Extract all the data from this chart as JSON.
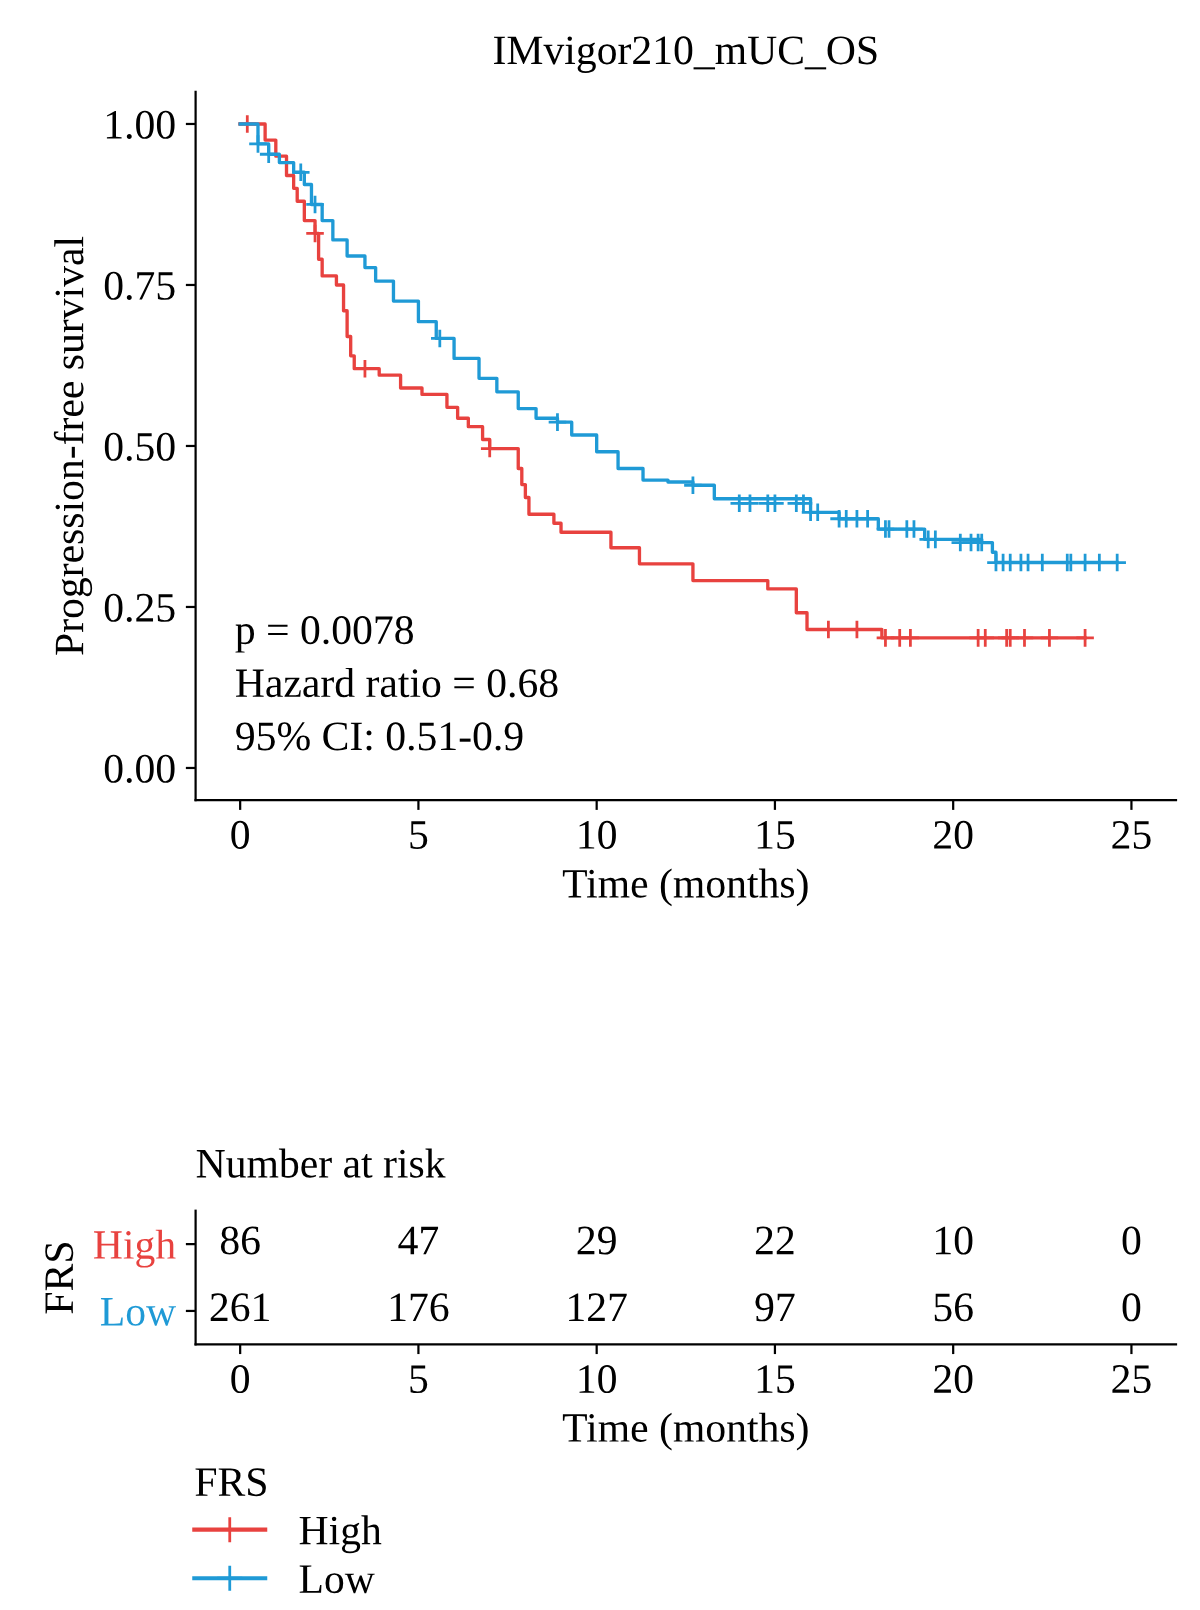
{
  "chart_data": [
    {
      "type": "step",
      "title": "IMvigor210_mUC_OS",
      "xlabel": "Time (months)",
      "ylabel": "Progression-free survival",
      "legend_title": "FRS",
      "legend": "bottom",
      "grid": false,
      "line_style": "solid",
      "xlim": [
        -1.25,
        26.25
      ],
      "xticks": [
        0,
        5,
        10,
        15,
        20,
        25
      ],
      "ylim": [
        -0.05,
        1.05
      ],
      "yticks": [
        {
          "value": 0,
          "label": "0.00"
        },
        {
          "value": 0.25,
          "label": "0.25"
        },
        {
          "value": 0.5,
          "label": "0.50"
        },
        {
          "value": 0.75,
          "label": "0.75"
        },
        {
          "value": 1,
          "label": "1.00"
        }
      ],
      "annotations": [
        "p = 0.0078",
        "Hazard ratio = 0.68",
        "95% CI: 0.51-0.9"
      ],
      "series": [
        {
          "name": "High",
          "color": "#e8423f",
          "x": [
            0,
            0.7,
            1.0,
            1.3,
            1.5,
            1.6,
            1.8,
            2.1,
            2.2,
            2.3,
            2.7,
            2.9,
            3.0,
            3.1,
            3.2,
            3.9,
            4.5,
            5.1,
            5.8,
            6.1,
            6.4,
            6.8,
            7.0,
            7.8,
            7.9,
            8.0,
            8.1,
            8.8,
            9.0,
            10.4,
            11.2,
            12.7,
            14.8,
            15.6,
            15.9,
            18.0,
            23.7
          ],
          "values": [
            1.0,
            0.975,
            0.95,
            0.92,
            0.9,
            0.88,
            0.85,
            0.83,
            0.79,
            0.764,
            0.75,
            0.71,
            0.67,
            0.64,
            0.62,
            0.61,
            0.59,
            0.58,
            0.56,
            0.543,
            0.53,
            0.51,
            0.496,
            0.465,
            0.44,
            0.42,
            0.394,
            0.38,
            0.366,
            0.342,
            0.317,
            0.291,
            0.278,
            0.241,
            0.215,
            0.202,
            0.202
          ]
        },
        {
          "name": "Low",
          "color": "#1f9ad6",
          "x": [
            0,
            0.5,
            0.8,
            1.1,
            1.5,
            1.8,
            2.0,
            2.3,
            2.6,
            3.0,
            3.5,
            3.8,
            4.3,
            5.0,
            5.5,
            6.0,
            6.7,
            7.2,
            7.8,
            8.3,
            8.9,
            9.3,
            10.0,
            10.6,
            11.3,
            12.0,
            12.7,
            13.3,
            16.0,
            16.8,
            17.9,
            19.2,
            20.8,
            21.1,
            21.2,
            24.6
          ],
          "values": [
            1.0,
            0.969,
            0.953,
            0.94,
            0.925,
            0.906,
            0.875,
            0.85,
            0.82,
            0.795,
            0.777,
            0.756,
            0.725,
            0.693,
            0.667,
            0.636,
            0.605,
            0.584,
            0.558,
            0.543,
            0.537,
            0.517,
            0.491,
            0.465,
            0.447,
            0.444,
            0.439,
            0.418,
            0.397,
            0.387,
            0.371,
            0.355,
            0.35,
            0.335,
            0.319,
            0.319
          ]
        },
        {
          "type": "scatter",
          "color": "#e8423f",
          "marker": "cross",
          "x": [
            0.2,
            2.1,
            3.5,
            7.0,
            16.5,
            17.3,
            18.1,
            18.5,
            18.8,
            20.7,
            20.9,
            21.5,
            21.6,
            22.0,
            22.7,
            23.7
          ],
          "values": [
            1.0,
            0.83,
            0.62,
            0.496,
            0.215,
            0.215,
            0.202,
            0.202,
            0.202,
            0.202,
            0.202,
            0.202,
            0.202,
            0.202,
            0.202,
            0.202
          ]
        },
        {
          "type": "scatter",
          "color": "#1f9ad6",
          "marker": "cross",
          "x": [
            0.5,
            0.8,
            1.7,
            2.1,
            5.6,
            8.9,
            12.7,
            14.0,
            14.3,
            14.8,
            15.0,
            15.6,
            15.8,
            16.0,
            16.2,
            16.8,
            17.0,
            17.3,
            17.6,
            18.1,
            18.2,
            18.7,
            18.9,
            19.3,
            19.5,
            20.2,
            20.5,
            20.7,
            20.8,
            21.2,
            21.4,
            21.6,
            21.9,
            22.1,
            22.5,
            23.2,
            23.3,
            23.7,
            24.1,
            24.6
          ],
          "values": [
            0.969,
            0.953,
            0.925,
            0.875,
            0.667,
            0.537,
            0.439,
            0.411,
            0.411,
            0.411,
            0.411,
            0.411,
            0.411,
            0.397,
            0.397,
            0.387,
            0.387,
            0.387,
            0.387,
            0.371,
            0.371,
            0.371,
            0.371,
            0.355,
            0.355,
            0.35,
            0.35,
            0.35,
            0.35,
            0.319,
            0.319,
            0.319,
            0.319,
            0.319,
            0.319,
            0.319,
            0.319,
            0.319,
            0.319,
            0.319
          ]
        }
      ]
    },
    {
      "type": "heatmap",
      "title": "Number at risk",
      "xlabel": "Time (months)",
      "ylabel": "FRS",
      "data_labels": true,
      "categories": [
        "0",
        "5",
        "10",
        "15",
        "20",
        "25"
      ],
      "y_categories": [
        "High",
        "Low"
      ],
      "colors": [
        "#e8423f",
        "#1f9ad6"
      ],
      "cells": [
        [
          86,
          47,
          29,
          22,
          10,
          0
        ],
        [
          261,
          176,
          127,
          97,
          56,
          0
        ]
      ]
    }
  ]
}
